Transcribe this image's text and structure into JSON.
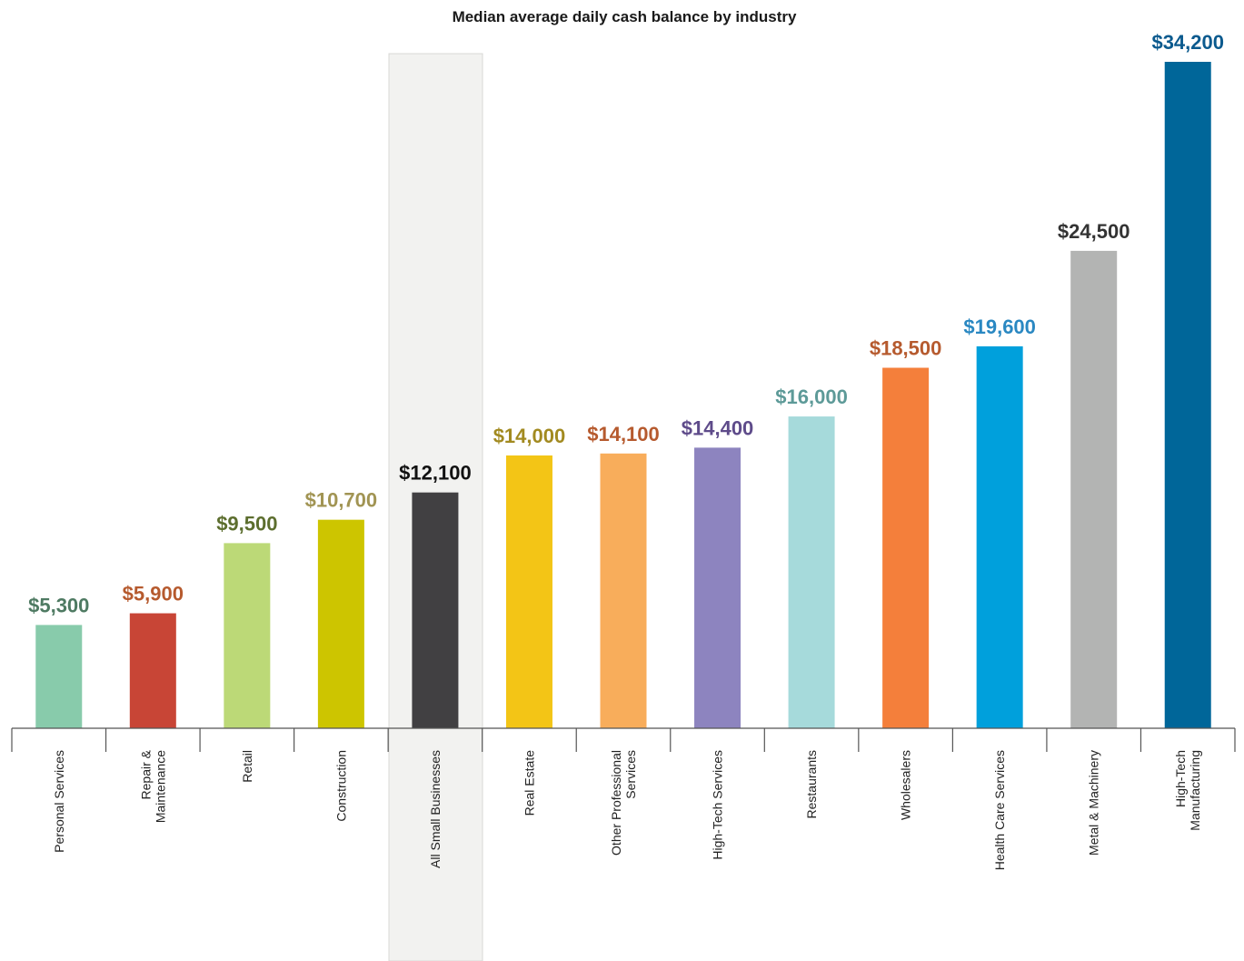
{
  "chart_data": {
    "type": "bar",
    "title": "Median average daily cash balance by industry",
    "xlabel": "",
    "ylabel": "",
    "ylim": [
      0,
      34200
    ],
    "grid": false,
    "legend": "none",
    "highlighted_category": "All Small Businesses",
    "highlight_band_color": "#f2f2f0",
    "bars": [
      {
        "category": [
          "Personal Services"
        ],
        "value": 5300,
        "value_label": "$5,300",
        "color": "#88cbab",
        "label_color": "#4e7a62"
      },
      {
        "category": [
          "Repair &",
          "Maintenance"
        ],
        "value": 5900,
        "value_label": "$5,900",
        "color": "#c84536",
        "label_color": "#b65a2e"
      },
      {
        "category": [
          "Retail"
        ],
        "value": 9500,
        "value_label": "$9,500",
        "color": "#bcd977",
        "label_color": "#5c6e2e"
      },
      {
        "category": [
          "Construction"
        ],
        "value": 10700,
        "value_label": "$10,700",
        "color": "#cdc500",
        "label_color": "#a19453"
      },
      {
        "category": [
          "All Small Businesses"
        ],
        "value": 12100,
        "value_label": "$12,100",
        "color": "#414042",
        "label_color": "#111111"
      },
      {
        "category": [
          "Real Estate"
        ],
        "value": 14000,
        "value_label": "$14,000",
        "color": "#f3c516",
        "label_color": "#a28a20"
      },
      {
        "category": [
          "Other Professional",
          "Services"
        ],
        "value": 14100,
        "value_label": "$14,100",
        "color": "#f8ad5b",
        "label_color": "#b65a2e"
      },
      {
        "category": [
          "High-Tech Services"
        ],
        "value": 14400,
        "value_label": "$14,400",
        "color": "#8d84bf",
        "label_color": "#5e4b8a"
      },
      {
        "category": [
          "Restaurants"
        ],
        "value": 16000,
        "value_label": "$16,000",
        "color": "#a6dadb",
        "label_color": "#5d9a98"
      },
      {
        "category": [
          "Wholesalers"
        ],
        "value": 18500,
        "value_label": "$18,500",
        "color": "#f47f3b",
        "label_color": "#b65a2e"
      },
      {
        "category": [
          "Health Care Services"
        ],
        "value": 19600,
        "value_label": "$19,600",
        "color": "#00a0dc",
        "label_color": "#2a88c2"
      },
      {
        "category": [
          "Metal & Machinery"
        ],
        "value": 24500,
        "value_label": "$24,500",
        "color": "#b3b4b3",
        "label_color": "#333333"
      },
      {
        "category": [
          "High-Tech",
          "Manufacturing"
        ],
        "value": 34200,
        "value_label": "$34,200",
        "color": "#006699",
        "label_color": "#0b5a8e"
      }
    ]
  }
}
